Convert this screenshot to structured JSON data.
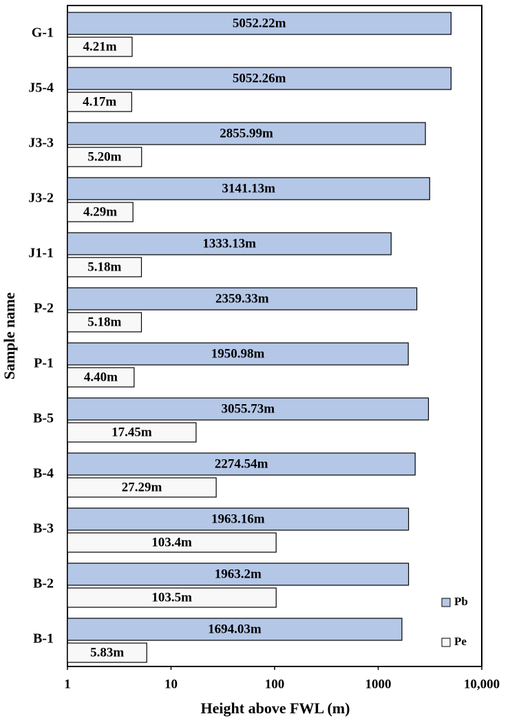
{
  "chart_data": {
    "type": "bar",
    "orientation": "horizontal",
    "xlabel": "Height above FWL (m)",
    "ylabel": "Sample name",
    "categories": [
      "G-1",
      "J5-4",
      "J3-3",
      "J3-2",
      "J1-1",
      "P-2",
      "P-1",
      "B-5",
      "B-4",
      "B-3",
      "B-2",
      "B-1"
    ],
    "series": [
      {
        "name": "Pb",
        "color": "#b4c7e7",
        "values": [
          5052.22,
          5052.26,
          2855.99,
          3141.13,
          1333.13,
          2359.33,
          1950.98,
          3055.73,
          2274.54,
          1963.16,
          1963.2,
          1694.03
        ],
        "value_labels": [
          "5052.22m",
          "5052.26m",
          "2855.99m",
          "3141.13m",
          "1333.13m",
          "2359.33m",
          "1950.98m",
          "3055.73m",
          "2274.54m",
          "1963.16m",
          "1963.2m",
          "1694.03m"
        ]
      },
      {
        "name": "Pe",
        "color": "#f8f8f8",
        "values": [
          4.21,
          4.17,
          5.2,
          4.29,
          5.18,
          5.18,
          4.4,
          17.45,
          27.29,
          103.4,
          103.5,
          5.83
        ],
        "value_labels": [
          "4.21m",
          "4.17m",
          "5.20m",
          "4.29m",
          "5.18m",
          "5.18m",
          "4.40m",
          "17.45m",
          "27.29m",
          "103.4m",
          "103.5m",
          "5.83m"
        ]
      }
    ],
    "xlim": [
      1,
      10000
    ],
    "xticks": [
      1,
      10,
      100,
      1000,
      {
        "value": 10000,
        "label": "10,000"
      }
    ],
    "log_scale": "x",
    "grid": false,
    "legend": "lower right"
  }
}
